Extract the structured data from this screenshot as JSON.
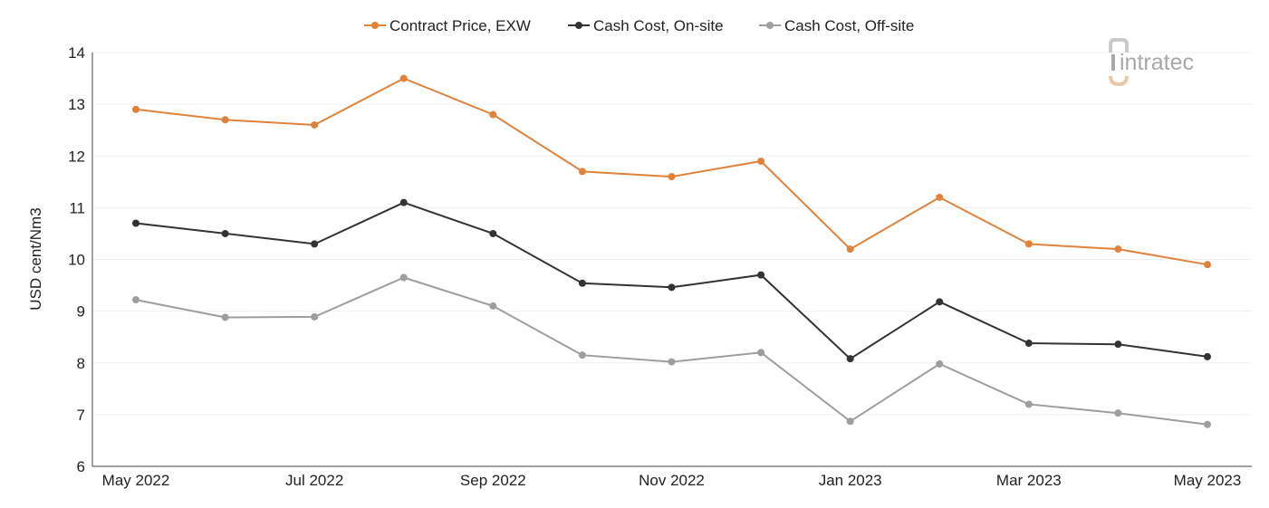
{
  "chart_data": {
    "type": "line",
    "title": "",
    "xlabel": "",
    "ylabel": "USD cent/Nm3",
    "ylim": [
      6,
      14
    ],
    "yticks": [
      6,
      7,
      8,
      9,
      10,
      11,
      12,
      13,
      14
    ],
    "grid": true,
    "legend_position": "top-center",
    "x": [
      "May 2022",
      "Jun 2022",
      "Jul 2022",
      "Aug 2022",
      "Sep 2022",
      "Oct 2022",
      "Nov 2022",
      "Dec 2022",
      "Jan 2023",
      "Feb 2023",
      "Mar 2023",
      "Apr 2023",
      "May 2023"
    ],
    "xtick_labels": [
      "May 2022",
      "",
      "Jul 2022",
      "",
      "Sep 2022",
      "",
      "Nov 2022",
      "",
      "Jan 2023",
      "",
      "Mar 2023",
      "",
      "May 2023"
    ],
    "series": [
      {
        "name": "Contract Price, EXW",
        "color": "#e0823b",
        "values": [
          12.9,
          12.7,
          12.6,
          13.5,
          12.8,
          11.7,
          11.6,
          11.9,
          10.2,
          11.2,
          10.3,
          10.2,
          9.9
        ]
      },
      {
        "name": "Cash Cost, On-site",
        "color": "#333333",
        "values": [
          10.7,
          10.5,
          10.3,
          11.1,
          10.5,
          9.54,
          9.46,
          9.7,
          8.08,
          9.18,
          8.38,
          8.36,
          8.12
        ]
      },
      {
        "name": "Cash Cost, Off-site",
        "color": "#9e9e9e",
        "values": [
          9.22,
          8.88,
          8.89,
          9.65,
          9.1,
          8.15,
          8.02,
          8.2,
          6.87,
          7.98,
          7.2,
          7.03,
          6.81
        ]
      }
    ]
  },
  "logo": {
    "text": "intratec",
    "icon": "intratec-logo-icon"
  }
}
